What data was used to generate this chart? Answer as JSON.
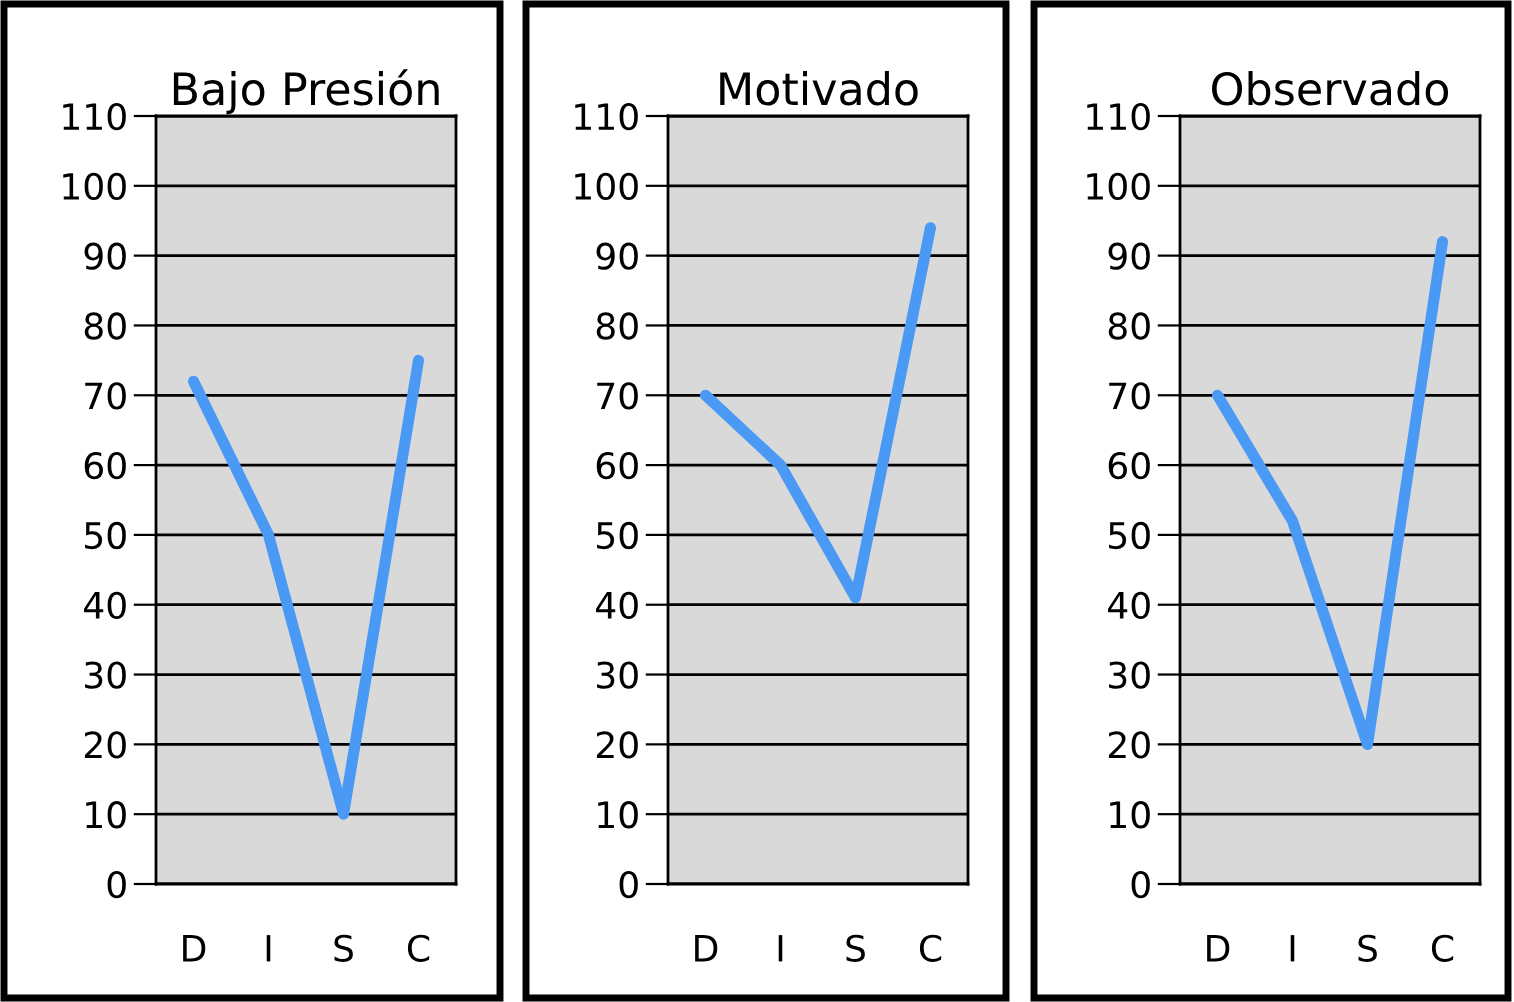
{
  "chart_data": [
    {
      "type": "line",
      "title": "Bajo Presión",
      "categories": [
        "D",
        "I",
        "S",
        "C"
      ],
      "series": [
        {
          "color": "#4a9af5",
          "values": [
            72,
            50,
            10,
            75
          ]
        }
      ],
      "ylim": [
        0,
        110
      ],
      "yticks": [
        0,
        10,
        20,
        30,
        40,
        50,
        60,
        70,
        80,
        90,
        100,
        110
      ],
      "grid": "y",
      "legend": false,
      "marker": "none",
      "line_style": "solid"
    },
    {
      "type": "line",
      "title": "Motivado",
      "categories": [
        "D",
        "I",
        "S",
        "C"
      ],
      "series": [
        {
          "color": "#4a9af5",
          "values": [
            70,
            60,
            41,
            94
          ]
        }
      ],
      "ylim": [
        0,
        110
      ],
      "yticks": [
        0,
        10,
        20,
        30,
        40,
        50,
        60,
        70,
        80,
        90,
        100,
        110
      ],
      "grid": "y",
      "legend": false,
      "marker": "none",
      "line_style": "solid"
    },
    {
      "type": "line",
      "title": "Observado",
      "categories": [
        "D",
        "I",
        "S",
        "C"
      ],
      "series": [
        {
          "color": "#4a9af5",
          "values": [
            70,
            52,
            20,
            92
          ]
        }
      ],
      "ylim": [
        0,
        110
      ],
      "yticks": [
        0,
        10,
        20,
        30,
        40,
        50,
        60,
        70,
        80,
        90,
        100,
        110
      ],
      "grid": "y",
      "legend": false,
      "marker": "none",
      "line_style": "solid"
    }
  ]
}
